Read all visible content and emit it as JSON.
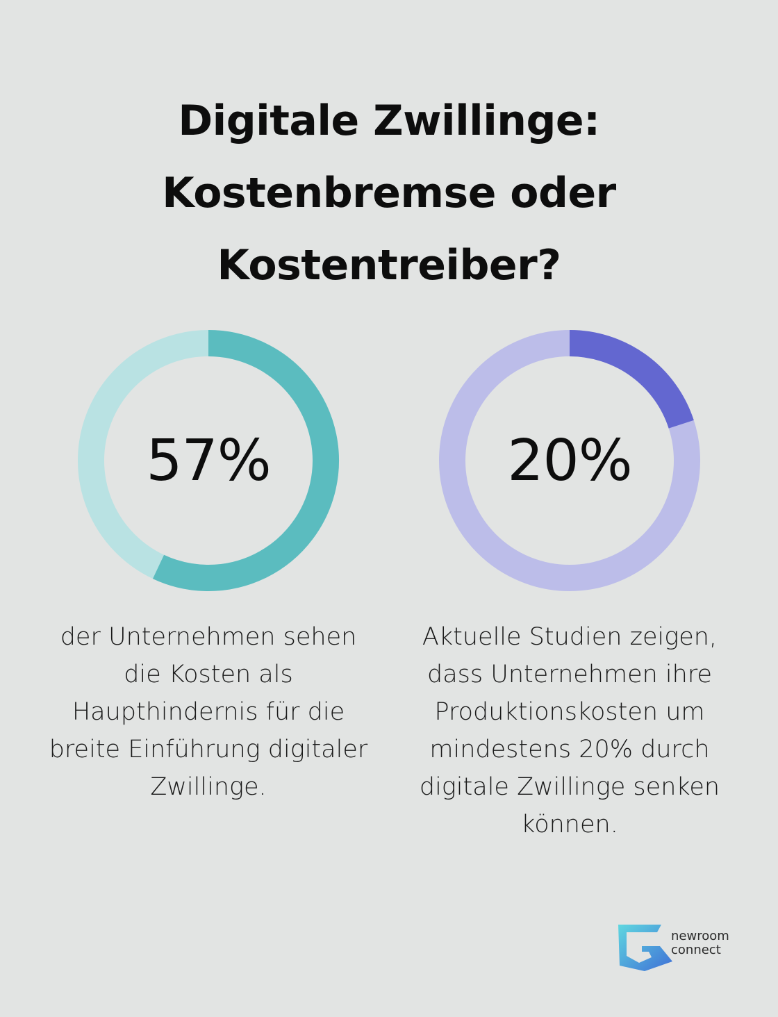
{
  "title_lines": [
    "Digitale Zwillinge:",
    "Kostenbremse oder",
    "Kostentreiber?"
  ],
  "chart_data": [
    {
      "type": "pie",
      "value": 57,
      "label": "57%",
      "max": 100,
      "colors": {
        "fill": "#5bbcbf",
        "track": "#b9e2e3"
      },
      "caption": [
        "der Unternehmen sehen",
        "die Kosten als",
        "Haupthindernis für die",
        "breite Einführung digitaler",
        "Zwillinge."
      ]
    },
    {
      "type": "pie",
      "value": 20,
      "label": "20%",
      "max": 100,
      "colors": {
        "fill": "#6367d0",
        "track": "#bcbde9"
      },
      "caption": [
        "Aktuelle Studien zeigen,",
        "dass Unternehmen ihre",
        "Produktionskosten um",
        "mindestens 20% durch",
        "digitale Zwillinge senken",
        "können."
      ]
    }
  ],
  "logo": {
    "lines": [
      "newroom",
      "connect"
    ],
    "colors": {
      "top": "#5fd7e0",
      "bottom": "#3f6fd6"
    }
  },
  "colors": {
    "background": "#e2e4e3",
    "text": "#0d0d0d"
  }
}
